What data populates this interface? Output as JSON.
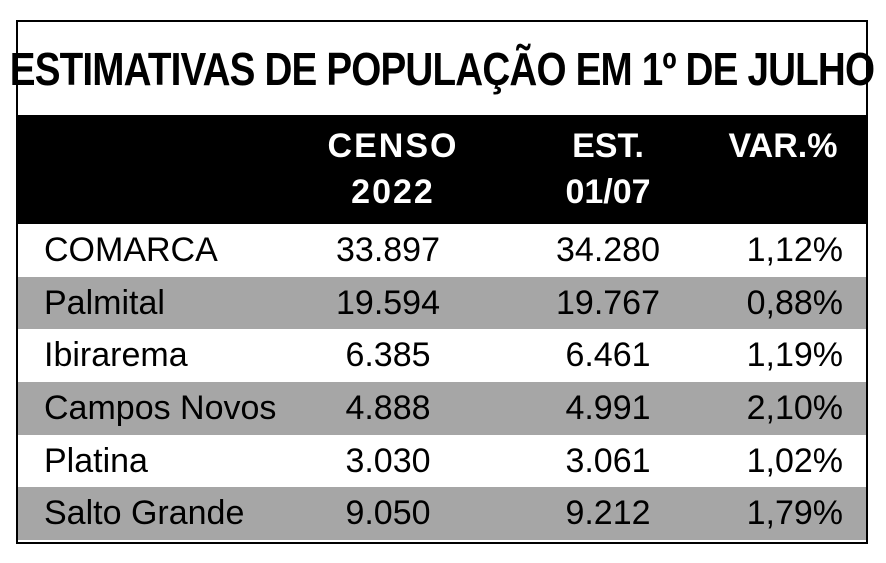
{
  "title": "ESTIMATIVAS DE POPULAÇÃO EM 1º DE JULHO",
  "headers": {
    "censo_line1": "CENSO",
    "censo_line2": "2022",
    "est_line1": "EST.",
    "est_line2": "01/07",
    "var": "VAR.%"
  },
  "rows": [
    {
      "name": "COMARCA",
      "censo": "33.897",
      "est": "34.280",
      "var": "1,12%"
    },
    {
      "name": "Palmital",
      "censo": "19.594",
      "est": "19.767",
      "var": "0,88%"
    },
    {
      "name": "Ibirarema",
      "censo": "6.385",
      "est": "6.461",
      "var": "1,19%"
    },
    {
      "name": "Campos Novos",
      "censo": "4.888",
      "est": "4.991",
      "var": "2,10%"
    },
    {
      "name": "Platina",
      "censo": "3.030",
      "est": "3.061",
      "var": "1,02%"
    },
    {
      "name": "Salto Grande",
      "censo": "9.050",
      "est": "9.212",
      "var": "1,79%"
    }
  ],
  "colors": {
    "header_bg": "#000000",
    "shaded_row": "#a6a6a6",
    "border": "#000000"
  }
}
